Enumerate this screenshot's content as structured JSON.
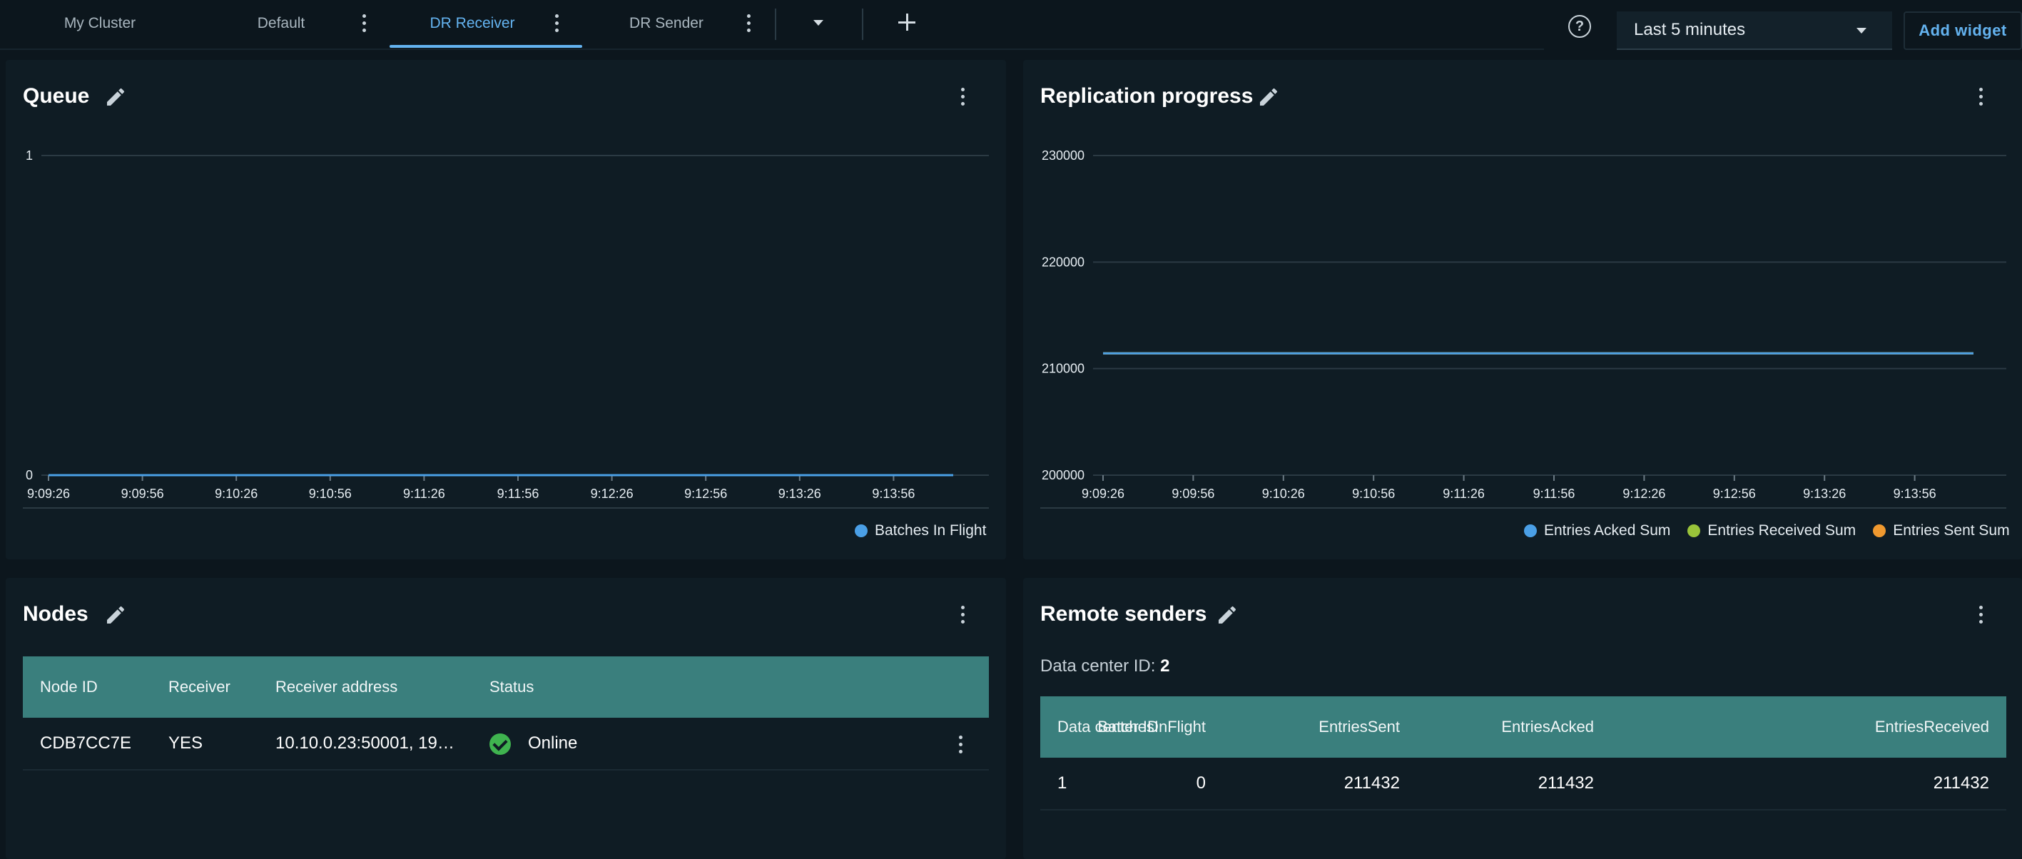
{
  "tabs": [
    {
      "label": "My Cluster"
    },
    {
      "label": "Default"
    },
    {
      "label": "DR Receiver"
    },
    {
      "label": "DR Sender"
    }
  ],
  "toolbar": {
    "help_icon": "help-circle-icon",
    "help_glyph": "?",
    "time_range": "Last 5 minutes",
    "add_widget_label": "Add widget"
  },
  "queue": {
    "title": "Queue",
    "legend": "Batches In Flight"
  },
  "replication": {
    "title": "Replication progress",
    "legend": [
      "Entries Acked Sum",
      "Entries Received Sum",
      "Entries Sent Sum"
    ]
  },
  "nodes": {
    "title": "Nodes",
    "columns": [
      "Node ID",
      "Receiver",
      "Receiver address",
      "Status"
    ],
    "rows": [
      {
        "node_id": "CDB7CC7E",
        "receiver": "YES",
        "address": "10.10.0.23:50001, 19…",
        "status": "Online"
      }
    ]
  },
  "remote_senders": {
    "title": "Remote senders",
    "dc_label": "Data center ID:",
    "dc_value": "2",
    "columns": [
      "Data center ID",
      "BatchesInFlight",
      "EntriesSent",
      "EntriesAcked",
      "EntriesReceived"
    ],
    "rows": [
      {
        "dc_id": "1",
        "batches": "0",
        "sent": "211432",
        "acked": "211432",
        "received": "211432"
      }
    ]
  },
  "colors": {
    "accent": "#64b3f0",
    "table_header": "#3a7f7d",
    "status_online": "#3fb34f",
    "series_acked": "#4a9fe6",
    "series_received": "#9ac43a",
    "series_sent": "#f0992f"
  },
  "chart_data": [
    {
      "type": "line",
      "title": "Queue",
      "x": [
        "9:09:26",
        "9:09:56",
        "9:10:26",
        "9:10:56",
        "9:11:26",
        "9:11:56",
        "9:12:26",
        "9:12:56",
        "9:13:26",
        "9:13:56"
      ],
      "ytick_labels": [
        "0",
        "1"
      ],
      "ylim": [
        0,
        1
      ],
      "series": [
        {
          "name": "Batches In Flight",
          "values": [
            0,
            0,
            0,
            0,
            0,
            0,
            0,
            0,
            0,
            0
          ]
        }
      ],
      "grid": true,
      "legend": "bottom-right"
    },
    {
      "type": "line",
      "title": "Replication progress",
      "x": [
        "9:09:26",
        "9:09:56",
        "9:10:26",
        "9:10:56",
        "9:11:26",
        "9:11:56",
        "9:12:26",
        "9:12:56",
        "9:13:26",
        "9:13:56"
      ],
      "ytick_labels": [
        "200000",
        "210000",
        "220000",
        "230000"
      ],
      "ylim": [
        200000,
        230000
      ],
      "series": [
        {
          "name": "Entries Acked Sum",
          "values": [
            211432,
            211432,
            211432,
            211432,
            211432,
            211432,
            211432,
            211432,
            211432,
            211432
          ]
        },
        {
          "name": "Entries Received Sum",
          "values": [
            211432,
            211432,
            211432,
            211432,
            211432,
            211432,
            211432,
            211432,
            211432,
            211432
          ]
        },
        {
          "name": "Entries Sent Sum",
          "values": [
            211432,
            211432,
            211432,
            211432,
            211432,
            211432,
            211432,
            211432,
            211432,
            211432
          ]
        }
      ],
      "grid": true,
      "legend": "bottom-right"
    }
  ]
}
